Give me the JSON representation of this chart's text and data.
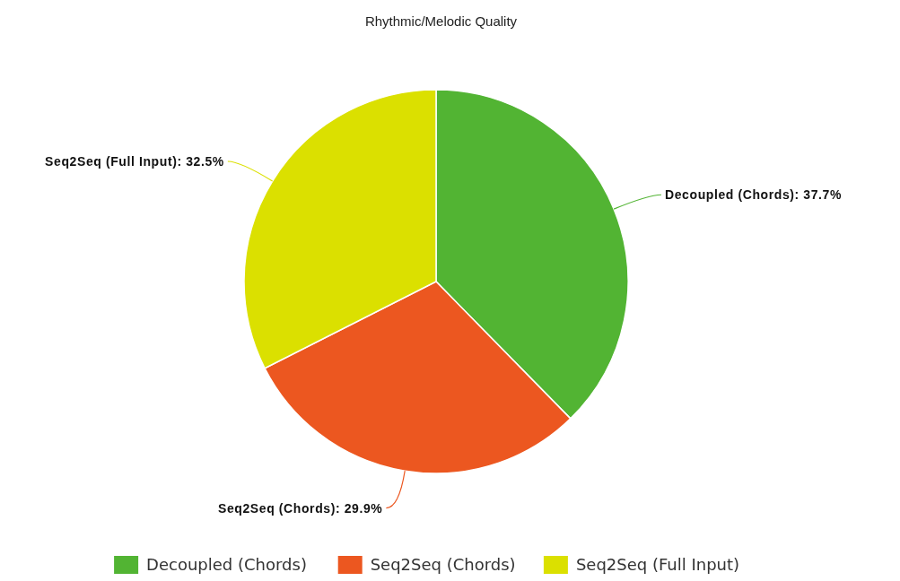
{
  "chart_data": {
    "type": "pie",
    "title": "Rhythmic/Melodic Quality",
    "categories": [
      "Decoupled (Chords)",
      "Seq2Seq (Chords)",
      "Seq2Seq (Full Input)"
    ],
    "values": [
      37.7,
      29.9,
      32.5
    ],
    "value_labels": [
      "Decoupled (Chords): 37.7%",
      "Seq2Seq (Chords): 29.9%",
      "Seq2Seq (Full Input): 32.5%"
    ],
    "colors": [
      "#52b433",
      "#ec5720",
      "#dbe000"
    ],
    "legend": "bottom"
  }
}
